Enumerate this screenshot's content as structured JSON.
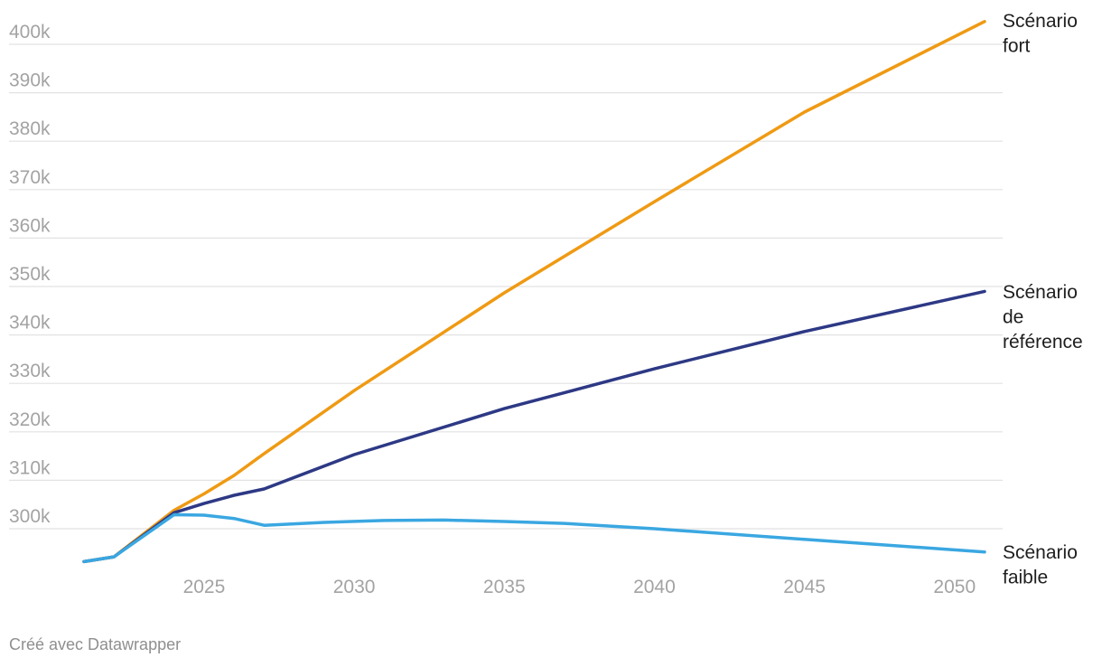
{
  "chart_data": {
    "type": "line",
    "title": "",
    "xlabel": "",
    "ylabel": "",
    "xlim": [
      2021,
      2051
    ],
    "ylim": [
      292000,
      405000
    ],
    "x_ticks": [
      2025,
      2030,
      2035,
      2040,
      2045,
      2050
    ],
    "y_ticks": [
      300000,
      310000,
      320000,
      330000,
      340000,
      350000,
      360000,
      370000,
      380000,
      390000,
      400000
    ],
    "y_tick_labels": [
      "300k",
      "310k",
      "320k",
      "330k",
      "340k",
      "350k",
      "360k",
      "370k",
      "380k",
      "390k",
      "400k"
    ],
    "grid": true,
    "legend": "direct labels at line ends (right)",
    "series": [
      {
        "name": "Scénario fort",
        "label_lines": [
          "Scénario",
          "fort"
        ],
        "color": "#ef9a14",
        "points": [
          [
            2021,
            293200
          ],
          [
            2022,
            294200
          ],
          [
            2024,
            303800
          ],
          [
            2025,
            307200
          ],
          [
            2026,
            311000
          ],
          [
            2027,
            315500
          ],
          [
            2030,
            328500
          ],
          [
            2035,
            348700
          ],
          [
            2040,
            367500
          ],
          [
            2045,
            386000
          ],
          [
            2051,
            404700
          ]
        ]
      },
      {
        "name": "Scénario de référence",
        "label_lines": [
          "Scénario",
          "de",
          "référence"
        ],
        "color": "#2d3985",
        "points": [
          [
            2021,
            293200
          ],
          [
            2022,
            294200
          ],
          [
            2024,
            303300
          ],
          [
            2025,
            305200
          ],
          [
            2026,
            306900
          ],
          [
            2027,
            308200
          ],
          [
            2030,
            315300
          ],
          [
            2035,
            324800
          ],
          [
            2040,
            333000
          ],
          [
            2045,
            340700
          ],
          [
            2051,
            349000
          ]
        ]
      },
      {
        "name": "Scénario faible",
        "label_lines": [
          "Scénario",
          "faible"
        ],
        "color": "#3aa7e1",
        "points": [
          [
            2021,
            293200
          ],
          [
            2022,
            294200
          ],
          [
            2024,
            302900
          ],
          [
            2025,
            302800
          ],
          [
            2026,
            302100
          ],
          [
            2027,
            300700
          ],
          [
            2029,
            301300
          ],
          [
            2031,
            301700
          ],
          [
            2033,
            301800
          ],
          [
            2035,
            301500
          ],
          [
            2037,
            301100
          ],
          [
            2040,
            300000
          ],
          [
            2045,
            297800
          ],
          [
            2051,
            295200
          ]
        ]
      }
    ]
  },
  "footer": {
    "credit": "Créé avec Datawrapper"
  }
}
